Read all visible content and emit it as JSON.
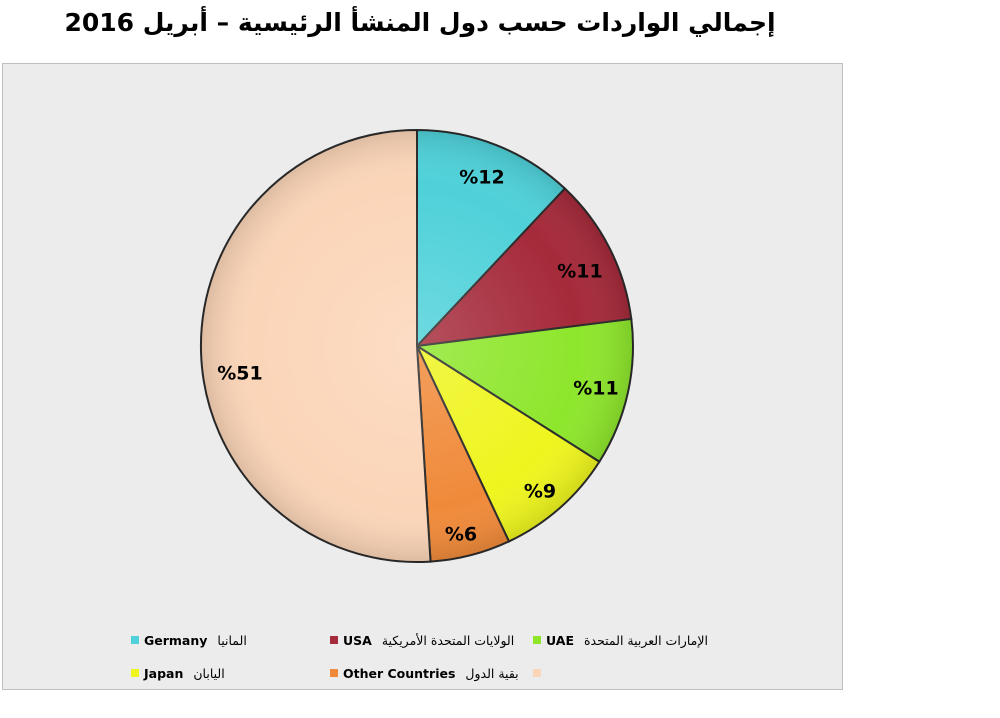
{
  "chart_data": {
    "type": "pie",
    "title": "إجمالي الواردات حسب دول المنشأ الرئيسية – أبريل 2016",
    "slices": [
      {
        "name_en": "Germany",
        "name_ar": "المانيا",
        "value": 12,
        "label": "%12",
        "color": "#4fd1d9"
      },
      {
        "name_en": "USA",
        "name_ar": "الولايات المتحدة الأمريكية",
        "value": 11,
        "label": "%11",
        "color": "#a52a3a"
      },
      {
        "name_en": "UAE",
        "name_ar": "الإمارات العربية المتحدة",
        "value": 11,
        "label": "%11",
        "color": "#8ee62c"
      },
      {
        "name_en": "Japan",
        "name_ar": "اليابان",
        "value": 9,
        "label": "%9",
        "color": "#eef51e"
      },
      {
        "name_en": "Other Countries",
        "name_ar": "بقية الدول",
        "value": 6,
        "label": "%6",
        "color": "#f08a3a"
      },
      {
        "name_en": "",
        "name_ar": "",
        "value": 51,
        "label": "%51",
        "color": "#fbd5b8"
      }
    ],
    "legend_position": "bottom"
  }
}
